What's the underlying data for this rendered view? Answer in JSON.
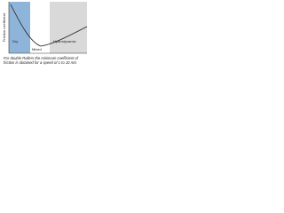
{
  "axis": {
    "y_label": "Friction coefficient"
  },
  "regions": [
    {
      "label": "Dry"
    },
    {
      "label": "Mixed"
    },
    {
      "label": "Hydrodynamic"
    }
  ],
  "caption": "For double Rollers the minimum coefficient of friction is obtained for a speed of 1 to 10 m/s"
}
